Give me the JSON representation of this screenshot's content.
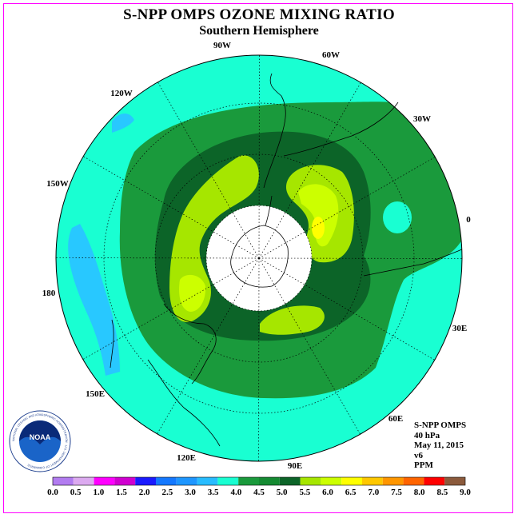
{
  "title": "S-NPP OMPS OZONE MIXING RATIO",
  "subtitle": "Southern Hemisphere",
  "longitude_labels": {
    "90W": "90W",
    "60W": "60W",
    "120W": "120W",
    "30W": "30W",
    "150W": "150W",
    "0": "0",
    "180": "180",
    "30E": "30E",
    "150E": "150E",
    "60E": "60E",
    "120E": "120E",
    "90E": "90E"
  },
  "info": {
    "instrument": "S-NPP OMPS",
    "pressure": "40 hPa",
    "date": "May 11, 2015",
    "version": "v6",
    "units": "PPM"
  },
  "logo": {
    "text": "NOAA",
    "ring_text": "NATIONAL OCEANIC AND ATMOSPHERIC ADMINISTRATION · U.S. DEPARTMENT OF COMMERCE"
  },
  "colorbar": {
    "ticks": [
      "0.0",
      "0.5",
      "1.0",
      "1.5",
      "2.0",
      "2.5",
      "3.0",
      "3.5",
      "4.0",
      "4.5",
      "5.0",
      "5.5",
      "6.0",
      "6.5",
      "7.0",
      "7.5",
      "8.0",
      "8.5",
      "9.0"
    ],
    "colors": [
      "#b27cf0",
      "#dcaaf0",
      "#ff00ff",
      "#d000d0",
      "#1a1aff",
      "#1478ff",
      "#1e96ff",
      "#28bcff",
      "#19ffd2",
      "#1a9a3c",
      "#158a32",
      "#0c6428",
      "#a6e600",
      "#ccff00",
      "#ffff00",
      "#ffc800",
      "#ff9600",
      "#ff6400",
      "#ff0000",
      "#8b5a3c"
    ]
  },
  "map_colors": {
    "level_4_0": "#19ffd2",
    "level_3_5": "#28c8ff",
    "level_4_5": "#1a9a3c",
    "level_5_0": "#0c6428",
    "level_5_5": "#a6e600",
    "level_6_0": "#ccff00",
    "level_6_5": "#ffff00"
  }
}
